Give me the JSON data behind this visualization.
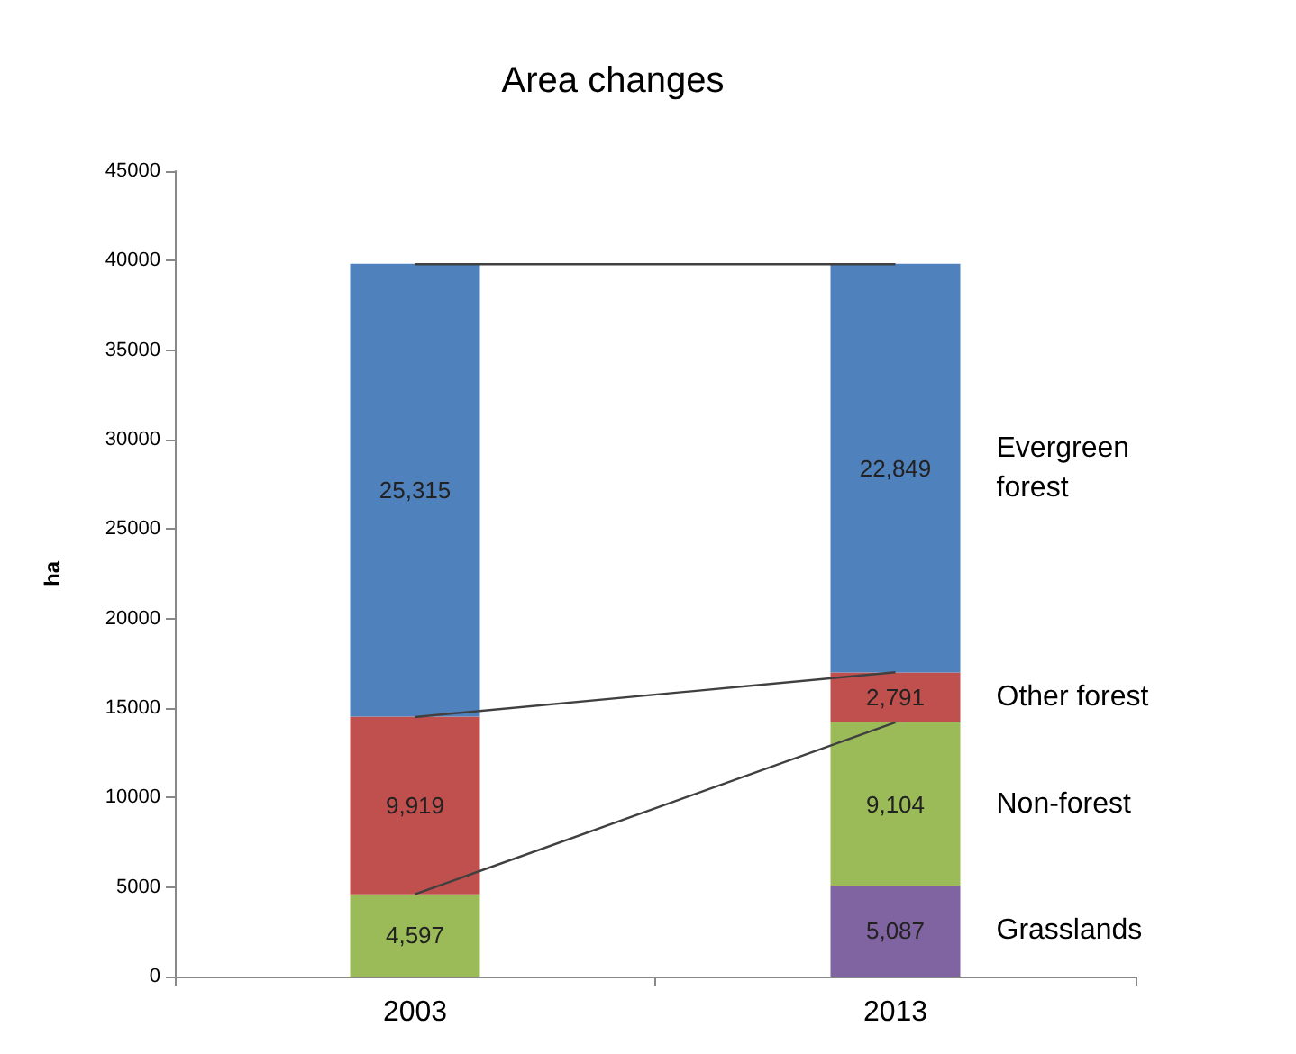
{
  "chart_data": {
    "type": "bar",
    "title": "Area changes",
    "ylabel": "ha",
    "categories": [
      "2003",
      "2013"
    ],
    "stacked": true,
    "marker": "none",
    "ylim": [
      0,
      45000
    ],
    "yticks": [
      0,
      5000,
      10000,
      15000,
      20000,
      25000,
      30000,
      35000,
      40000,
      45000
    ],
    "grid": false,
    "series": [
      {
        "name": "Grasslands",
        "color": "#8064a2",
        "values": [
          null,
          5087
        ],
        "value_labels": [
          null,
          "5,087"
        ]
      },
      {
        "name": "Non-forest",
        "color": "#9bbb59",
        "values": [
          4597,
          9104
        ],
        "value_labels": [
          "4,597",
          "9,104"
        ]
      },
      {
        "name": "Other forest",
        "color": "#c0504d",
        "values": [
          9919,
          2791
        ],
        "value_labels": [
          "9,919",
          "2,791"
        ]
      },
      {
        "name": "Evergreen forest",
        "color": "#4f81bd",
        "values": [
          25315,
          22849
        ],
        "value_labels": [
          "25,315",
          "22,849"
        ]
      },
      {
        "type": "line",
        "color": "#404040",
        "values": [
          39800,
          39800
        ]
      },
      {
        "type": "line",
        "color": "#404040",
        "values": [
          14500,
          17000
        ]
      },
      {
        "type": "line",
        "color": "#404040",
        "values": [
          4600,
          14200
        ]
      }
    ]
  }
}
